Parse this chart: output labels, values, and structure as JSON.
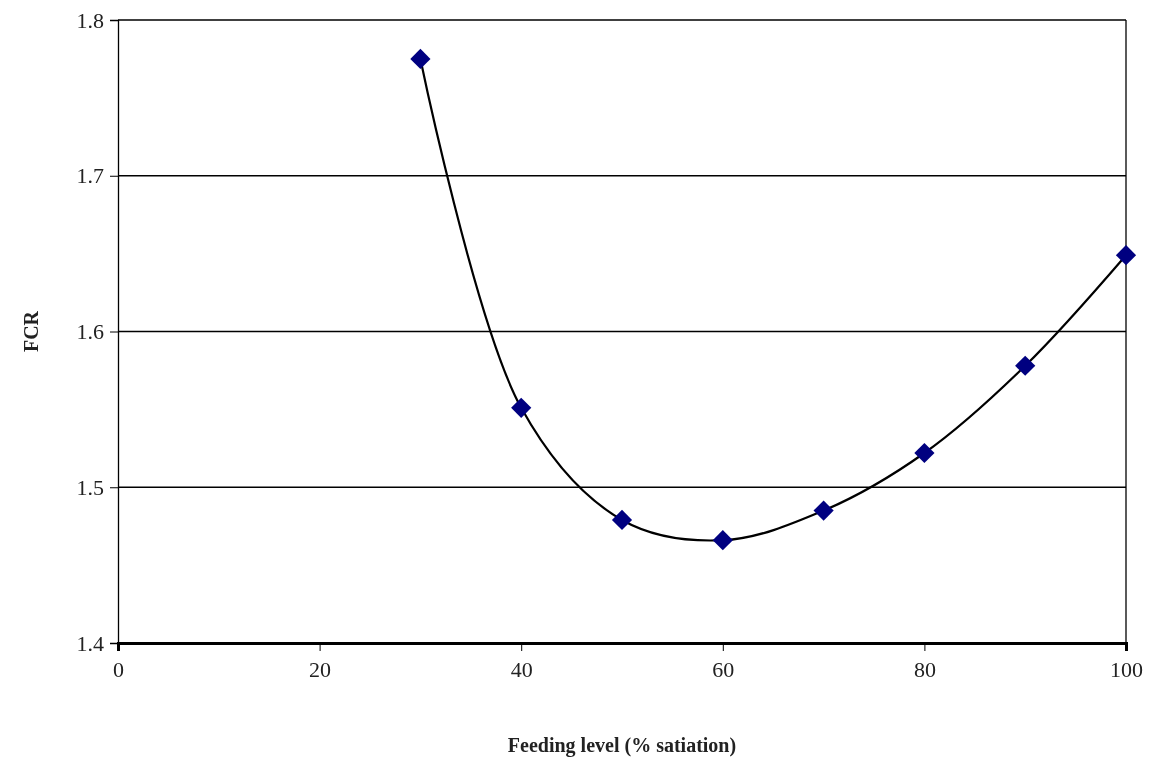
{
  "chart_data": {
    "type": "line",
    "xlabel": "Feeding level (% satiation)",
    "ylabel": "FCR",
    "x": [
      30,
      40,
      50,
      60,
      70,
      80,
      90,
      100
    ],
    "series": [
      {
        "color": "#000080",
        "values": [
          1.775,
          1.551,
          1.479,
          1.466,
          1.485,
          1.522,
          1.578,
          1.649
        ]
      }
    ],
    "xlim": [
      0,
      100
    ],
    "xticks": [
      0,
      20,
      40,
      60,
      80,
      100
    ],
    "ylim": [
      1.4,
      1.8
    ],
    "yticks": [
      {
        "value": 1.4,
        "label": "1.4"
      },
      {
        "value": 1.5,
        "label": "1.5"
      },
      {
        "value": 1.6,
        "label": "1.6"
      },
      {
        "value": 1.7,
        "label": "1.7"
      },
      {
        "value": 1.8,
        "label": "1.8"
      }
    ],
    "grid": "y",
    "marker": "diamond",
    "line_style": "solid"
  }
}
